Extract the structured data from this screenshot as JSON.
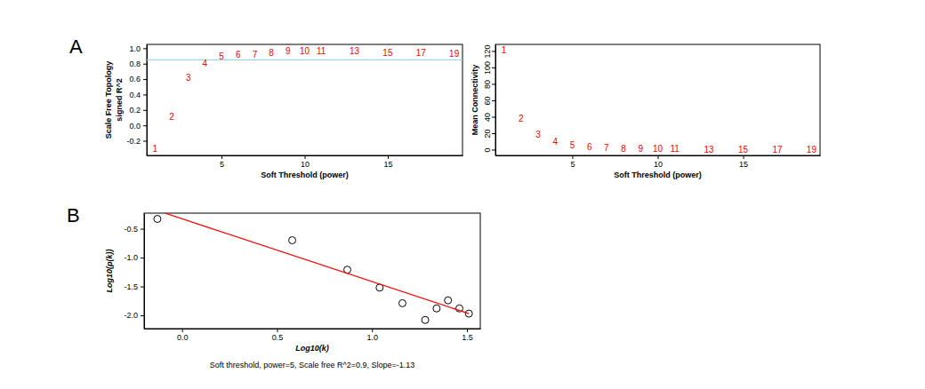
{
  "chart_data": [
    {
      "panel": "A",
      "type": "scatter",
      "marker": "text",
      "color": "red",
      "x_label": "Soft Threshold (power)",
      "y_label": [
        "Scale Free Topology",
        "signed R^2"
      ],
      "x": [
        1,
        2,
        3,
        4,
        5,
        6,
        7,
        8,
        9,
        10,
        11,
        13,
        15,
        17,
        19
      ],
      "values": [
        -0.3,
        0.11,
        0.62,
        0.8,
        0.9,
        0.92,
        0.92,
        0.94,
        0.96,
        0.96,
        0.96,
        0.96,
        0.94,
        0.94,
        0.93
      ],
      "hline": 0.85,
      "xlim": [
        0.5,
        19.5
      ],
      "xticks": [
        5,
        10,
        15
      ],
      "ylim": [
        -0.39,
        1.05
      ],
      "yticks": [
        -0.2,
        {
          "value": 0,
          "label": "0.0"
        },
        0.2,
        0.4,
        0.6,
        0.8,
        {
          "value": 1,
          "label": "1.0"
        }
      ]
    },
    {
      "type": "scatter",
      "marker": "text",
      "color": "red",
      "x_label": "Soft Threshold (power)",
      "y_label": "Mean Connectivity",
      "x": [
        1,
        2,
        3,
        4,
        5,
        6,
        7,
        8,
        9,
        10,
        11,
        13,
        15,
        17,
        19
      ],
      "values": [
        121,
        38,
        18,
        10,
        5,
        3,
        2,
        1.5,
        1,
        0.8,
        0.6,
        0.4,
        0.3,
        0.2,
        0.15
      ],
      "xlim": [
        0.5,
        19.5
      ],
      "xticks": [
        5,
        10,
        15
      ],
      "ylim": [
        -7,
        128
      ],
      "yticks": [
        0,
        20,
        40,
        60,
        80,
        100,
        120
      ]
    },
    {
      "panel": "B",
      "type": "scatter",
      "x_label": "Log10(k)",
      "y_label": "Log10(p(k))",
      "subtitle": "Soft threshold, power=5, Scale free R^2=0.9, Slope=-1.13",
      "series": [
        {
          "type": "scatter",
          "marker": "circle",
          "color": "black",
          "x": [
            -0.13,
            0.58,
            0.87,
            1.04,
            1.16,
            1.28,
            1.34,
            1.4,
            1.46,
            1.51
          ],
          "values": [
            -0.33,
            -0.7,
            -1.21,
            -1.52,
            -1.79,
            -2.08,
            -1.88,
            -1.74,
            -1.88,
            -1.97
          ]
        },
        {
          "type": "line",
          "line_style": "solid",
          "color": "red",
          "x": [
            -0.09,
            1.51
          ],
          "values": [
            -0.23,
            -1.97
          ]
        }
      ],
      "xlim": [
        -0.2,
        1.57
      ],
      "xticks": [
        {
          "value": 0,
          "label": "0.0"
        },
        0.5,
        {
          "value": 1,
          "label": "1.0"
        },
        1.5
      ],
      "ylim": [
        -2.23,
        -0.23
      ],
      "yticks": [
        -0.5,
        {
          "value": -1,
          "label": "-1.0"
        },
        -1.5,
        {
          "value": -2,
          "label": "-2.0"
        }
      ]
    }
  ]
}
